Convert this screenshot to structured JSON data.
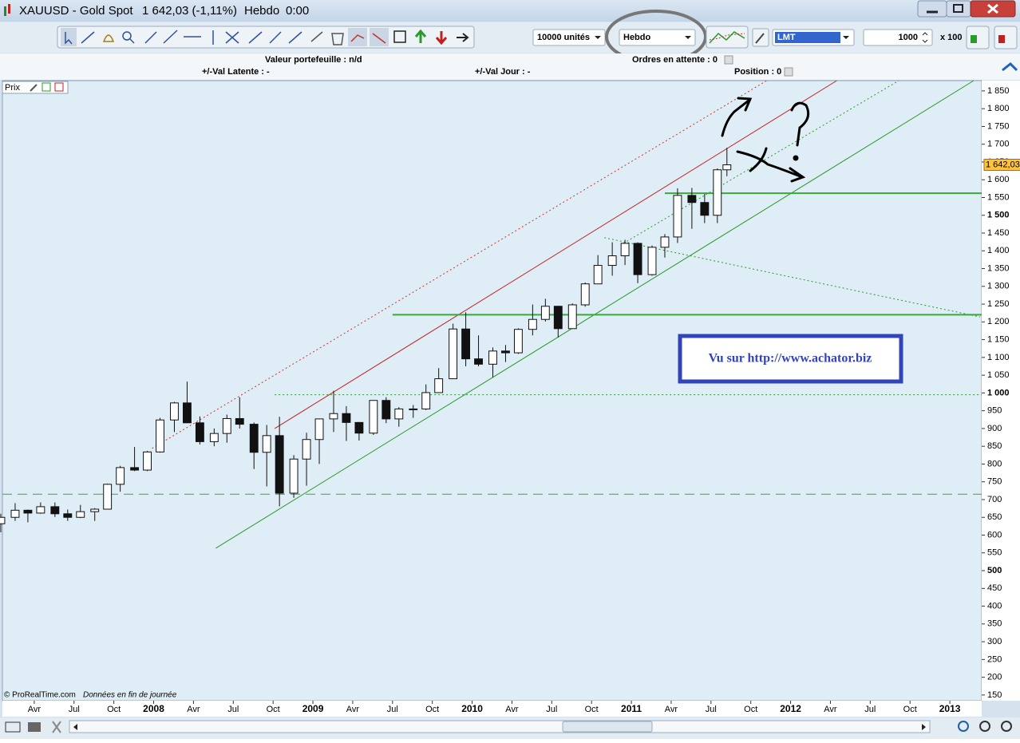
{
  "window": {
    "symbol": "XAUUSD - Gold Spot",
    "quote": "1 642,03 (-1,11%)",
    "period": "Hebdo",
    "time": "0:00"
  },
  "toolbar": {
    "quantity": "10000 unités",
    "period": "Hebdo",
    "order_type": "LMT",
    "amount": "1000",
    "multiplier": "x 100"
  },
  "info_bar": {
    "portfolio": "Valeur portefeuille : n/d",
    "pending_orders": "Ordres en attente : 0",
    "latent": "+/-Val Latente : -",
    "daily": "+/-Val Jour : -",
    "position": "Position : 0"
  },
  "chart_data": {
    "type": "candlestick",
    "panel_label": "Prix",
    "xlim": [
      2007.05,
      2013.2
    ],
    "xticks": [
      {
        "value": 2007.25,
        "label": "Avr"
      },
      {
        "value": 2007.5,
        "label": "Jul"
      },
      {
        "value": 2007.75,
        "label": "Oct"
      },
      2008,
      {
        "value": 2008.25,
        "label": "Avr"
      },
      {
        "value": 2008.5,
        "label": "Jul"
      },
      {
        "value": 2008.75,
        "label": "Oct"
      },
      2009,
      {
        "value": 2009.25,
        "label": "Avr"
      },
      {
        "value": 2009.5,
        "label": "Jul"
      },
      {
        "value": 2009.75,
        "label": "Oct"
      },
      2010,
      {
        "value": 2010.25,
        "label": "Avr"
      },
      {
        "value": 2010.5,
        "label": "Jul"
      },
      {
        "value": 2010.75,
        "label": "Oct"
      },
      2011,
      {
        "value": 2011.25,
        "label": "Avr"
      },
      {
        "value": 2011.5,
        "label": "Jul"
      },
      {
        "value": 2011.75,
        "label": "Oct"
      },
      2012,
      {
        "value": 2012.25,
        "label": "Avr"
      },
      {
        "value": 2012.5,
        "label": "Jul"
      },
      {
        "value": 2012.75,
        "label": "Oct"
      },
      2013
    ],
    "ylim": [
      134,
      1879
    ],
    "yticks": [
      150,
      200,
      250,
      300,
      350,
      400,
      450,
      500,
      550,
      600,
      650,
      700,
      750,
      800,
      850,
      900,
      950,
      {
        "value": 1000,
        "label": "1 000"
      },
      {
        "value": 1050,
        "label": "1 050"
      },
      {
        "value": 1100,
        "label": "1 100"
      },
      {
        "value": 1150,
        "label": "1 150"
      },
      {
        "value": 1200,
        "label": "1 200"
      },
      {
        "value": 1250,
        "label": "1 250"
      },
      {
        "value": 1300,
        "label": "1 300"
      },
      {
        "value": 1350,
        "label": "1 350"
      },
      {
        "value": 1400,
        "label": "1 400"
      },
      {
        "value": 1450,
        "label": "1 450"
      },
      {
        "value": 1500,
        "label": "1 500"
      },
      {
        "value": 1550,
        "label": "1 550"
      },
      {
        "value": 1600,
        "label": "1 600"
      },
      {
        "value": 1650,
        "label": "1 650"
      },
      {
        "value": 1700,
        "label": "1 700"
      },
      {
        "value": 1750,
        "label": "1 750"
      },
      {
        "value": 1800,
        "label": "1 800"
      },
      {
        "value": 1850,
        "label": "1 850"
      }
    ],
    "x": [
      2007.04,
      2007.13,
      2007.21,
      2007.29,
      2007.38,
      2007.46,
      2007.54,
      2007.63,
      2007.71,
      2007.79,
      2007.88,
      2007.96,
      2008.04,
      2008.13,
      2008.21,
      2008.29,
      2008.38,
      2008.46,
      2008.54,
      2008.63,
      2008.71,
      2008.79,
      2008.88,
      2008.96,
      2009.04,
      2009.13,
      2009.21,
      2009.29,
      2009.38,
      2009.46,
      2009.54,
      2009.63,
      2009.71,
      2009.79,
      2009.88,
      2009.96,
      2010.04,
      2010.13,
      2010.21,
      2010.29,
      2010.38,
      2010.46,
      2010.54,
      2010.63,
      2010.71,
      2010.79,
      2010.88,
      2010.96,
      2011.04,
      2011.13,
      2011.21,
      2011.29,
      2011.38,
      2011.46,
      2011.54,
      2011.6
    ],
    "open": [
      632,
      650,
      670,
      662,
      680,
      660,
      650,
      666,
      673,
      743,
      790,
      783,
      834,
      924,
      972,
      916,
      863,
      886,
      928,
      912,
      833,
      880,
      718,
      814,
      869,
      927,
      942,
      917,
      887,
      979,
      927,
      955,
      955,
      1001,
      1040,
      1180,
      1096,
      1081,
      1118,
      1113,
      1179,
      1207,
      1244,
      1181,
      1248,
      1307,
      1359,
      1386,
      1421,
      1333,
      1410,
      1439,
      1556,
      1536,
      1500,
      1628
    ],
    "high": [
      660,
      690,
      672,
      692,
      692,
      672,
      685,
      676,
      745,
      795,
      848,
      837,
      930,
      975,
      1032,
      934,
      900,
      939,
      988,
      917,
      910,
      933,
      825,
      888,
      927,
      1006,
      963,
      918,
      980,
      988,
      960,
      966,
      1024,
      1070,
      1195,
      1227,
      1162,
      1128,
      1135,
      1182,
      1249,
      1265,
      1245,
      1252,
      1311,
      1388,
      1424,
      1431,
      1424,
      1415,
      1447,
      1576,
      1577,
      1560,
      1632,
      1690
    ],
    "low": [
      608,
      640,
      636,
      660,
      651,
      640,
      648,
      640,
      672,
      722,
      780,
      780,
      832,
      890,
      922,
      855,
      850,
      860,
      900,
      786,
      737,
      681,
      705,
      739,
      800,
      890,
      865,
      866,
      882,
      915,
      905,
      930,
      952,
      1001,
      1040,
      1075,
      1075,
      1044,
      1087,
      1110,
      1162,
      1201,
      1156,
      1181,
      1243,
      1315,
      1330,
      1360,
      1309,
      1330,
      1381,
      1422,
      1462,
      1478,
      1478,
      1610
    ],
    "close": [
      650,
      670,
      662,
      680,
      660,
      650,
      666,
      673,
      743,
      790,
      783,
      834,
      924,
      972,
      916,
      863,
      886,
      928,
      912,
      833,
      880,
      718,
      814,
      869,
      927,
      942,
      917,
      887,
      979,
      927,
      955,
      955,
      1001,
      1040,
      1180,
      1096,
      1081,
      1118,
      1113,
      1179,
      1207,
      1244,
      1181,
      1248,
      1307,
      1359,
      1386,
      1421,
      1333,
      1410,
      1439,
      1556,
      1536,
      1500,
      1628,
      1642.03
    ],
    "up_color": "#ffffff",
    "down_color": "#111111",
    "last_price": {
      "value": 1642.03,
      "label": "1 642,03"
    },
    "lines": [
      {
        "x": [
          2007.99,
          2011.85
        ],
        "y": [
          844,
          1879
        ],
        "color": "#d83030",
        "style": "dotted",
        "width": 1
      },
      {
        "x": [
          2008.76,
          2012.29
        ],
        "y": [
          900,
          1879
        ],
        "color": "#c82020",
        "style": "solid",
        "width": 1
      },
      {
        "x": [
          2008.39,
          2013.15
        ],
        "y": [
          563,
          1879
        ],
        "color": "#2a9a2a",
        "style": "solid",
        "width": 1
      },
      {
        "x": [
          2010.95,
          2012.68
        ],
        "y": [
          1421,
          1879
        ],
        "color": "#2a9a2a",
        "style": "dotted",
        "width": 1
      },
      {
        "x": [
          2010.83,
          2013.19
        ],
        "y": [
          1437,
          1214
        ],
        "color": "#2a9a2a",
        "style": "dotted",
        "width": 1
      },
      {
        "x": [
          2011.21,
          2013.2
        ],
        "y": [
          1562,
          1562
        ],
        "color": "#3aa83a",
        "style": "solid",
        "width": 2
      },
      {
        "x": [
          2009.5,
          2013.2
        ],
        "y": [
          1220,
          1220
        ],
        "color": "#3aa83a",
        "style": "solid",
        "width": 2
      },
      {
        "x": [
          2008.76,
          2013.2
        ],
        "y": [
          995,
          995
        ],
        "color": "#2a9a2a",
        "style": "dotted",
        "width": 1
      },
      {
        "x": [
          2007.05,
          2013.2
        ],
        "y": [
          715,
          715
        ],
        "color": "#3aa83a",
        "style": "dashed",
        "width": 1
      }
    ],
    "annotation": "Vu sur http://www.achator.biz",
    "credit": "© ProRealTime.com",
    "note": "Données en fin de journée"
  }
}
